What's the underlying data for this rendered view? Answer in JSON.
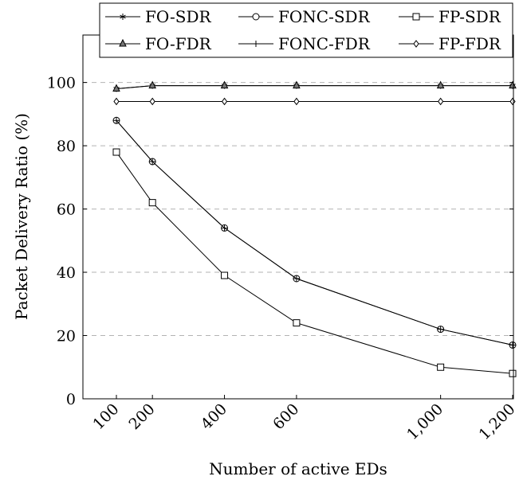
{
  "chart_data": {
    "type": "line",
    "title": "",
    "xlabel": "Number of active EDs",
    "ylabel": "Packet Delivery Ratio (%)",
    "x": [
      100,
      200,
      400,
      600,
      1000,
      1200
    ],
    "x_tick_labels": [
      "100",
      "200",
      "400",
      "600",
      "1,000",
      "1,200"
    ],
    "ylim": [
      0,
      115
    ],
    "y_ticks": [
      0,
      20,
      40,
      60,
      80,
      100
    ],
    "grid": "horizontal dashed",
    "legend_position": "top-right, above plot area, 3 columns",
    "series": [
      {
        "name": "FO-SDR",
        "marker": "asterisk",
        "values": [
          98,
          99,
          99,
          99,
          99,
          99
        ]
      },
      {
        "name": "FONC-SDR",
        "marker": "circle",
        "values": [
          88,
          75,
          54,
          38,
          22,
          17
        ]
      },
      {
        "name": "FP-SDR",
        "marker": "square",
        "values": [
          78,
          62,
          39,
          24,
          10,
          8
        ]
      },
      {
        "name": "FO-FDR",
        "marker": "triangle",
        "values": [
          98,
          99,
          99,
          99,
          99,
          99
        ]
      },
      {
        "name": "FONC-FDR",
        "marker": "plus",
        "values": [
          88,
          75,
          54,
          38,
          22,
          17
        ]
      },
      {
        "name": "FP-FDR",
        "marker": "diamond",
        "values": [
          94,
          94,
          94,
          94,
          94,
          94
        ]
      }
    ]
  }
}
